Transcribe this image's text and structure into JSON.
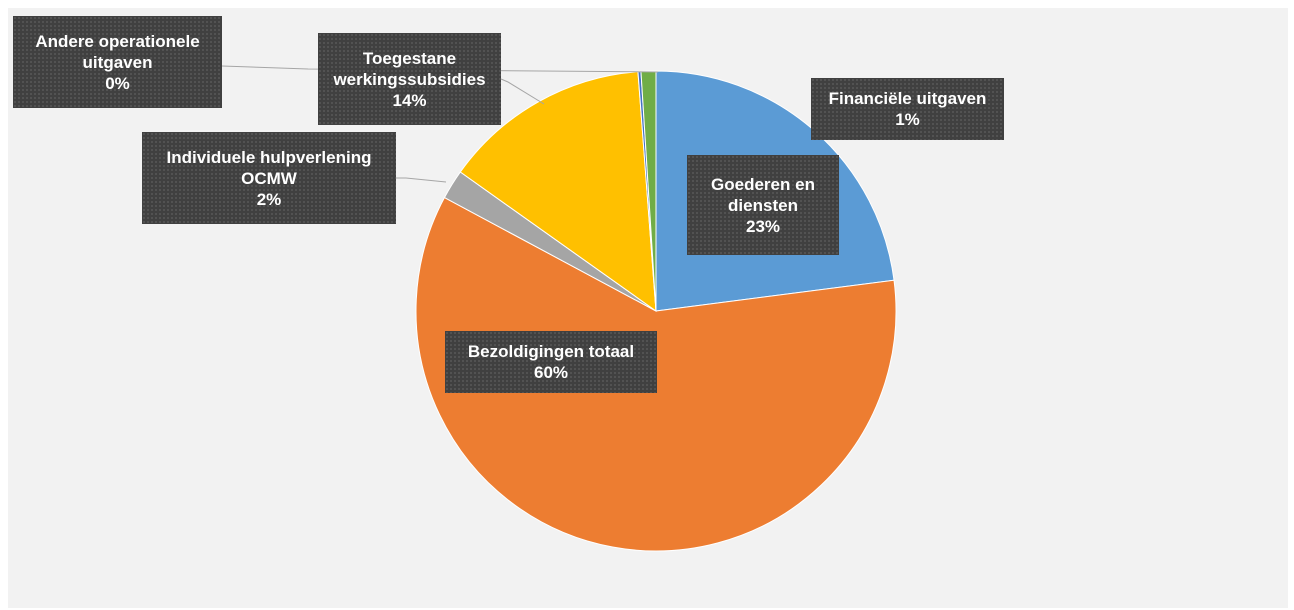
{
  "chart_data": {
    "type": "pie",
    "title": "",
    "slices": [
      {
        "label": "Goederen en diensten",
        "value": 23,
        "value_label": "23%",
        "color": "#5b9bd5"
      },
      {
        "label": "Bezoldigingen totaal",
        "value": 60,
        "value_label": "60%",
        "color": "#ed7d31"
      },
      {
        "label": "Individuele hulpverlening OCMW",
        "value": 2,
        "value_label": "2%",
        "color": "#a5a5a5"
      },
      {
        "label": "Toegestane werkingssubsidies",
        "value": 14,
        "value_label": "14%",
        "color": "#ffc000"
      },
      {
        "label": "Andere operationele uitgaven",
        "value": 0.2,
        "value_label": "0%",
        "color": "#4472c4"
      },
      {
        "label": "Financiële uitgaven",
        "value": 1,
        "value_label": "1%",
        "color": "#70ad47"
      }
    ],
    "label_lines": [
      [
        "Goederen en",
        "diensten",
        "23%"
      ],
      [
        "Bezoldigingen totaal",
        "60%"
      ],
      [
        "Individuele hulpverlening",
        "OCMW",
        "2%"
      ],
      [
        "Toegestane",
        "werkingssubsidies",
        "14%"
      ],
      [
        "Andere operationele",
        "uitgaven",
        "0%"
      ],
      [
        "Financiële uitgaven",
        "1%"
      ]
    ],
    "start_angle_deg": 0,
    "direction": "clockwise",
    "legend": "none",
    "data_labels": "callout boxes"
  }
}
